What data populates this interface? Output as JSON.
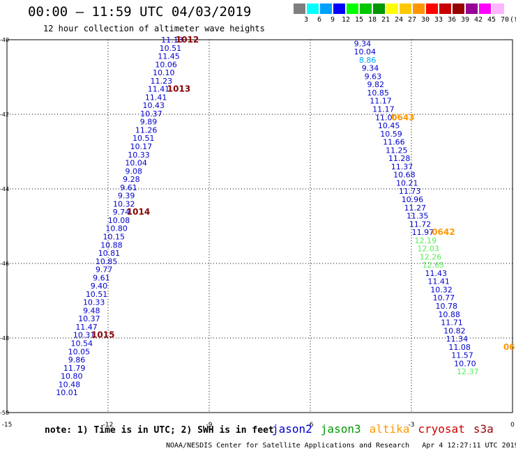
{
  "header": {
    "title": "00:00 – 11:59 UTC 04/03/2019",
    "subtitle": "12 hour collection of altimeter wave heights"
  },
  "legend": {
    "unit": "(ft)",
    "levels": [
      {
        "label": "3",
        "color": "#7f7f7f"
      },
      {
        "label": "6",
        "color": "#00ffff"
      },
      {
        "label": "9",
        "color": "#00a0ff"
      },
      {
        "label": "12",
        "color": "#0000ff"
      },
      {
        "label": "15",
        "color": "#00ff00"
      },
      {
        "label": "18",
        "color": "#00c800"
      },
      {
        "label": "21",
        "color": "#009600"
      },
      {
        "label": "24",
        "color": "#ffff00"
      },
      {
        "label": "27",
        "color": "#ffc800"
      },
      {
        "label": "30",
        "color": "#ff9600"
      },
      {
        "label": "33",
        "color": "#ff0000"
      },
      {
        "label": "36",
        "color": "#c80000"
      },
      {
        "label": "39",
        "color": "#960000"
      },
      {
        "label": "42",
        "color": "#960096"
      },
      {
        "label": "45",
        "color": "#ff00ff"
      },
      {
        "label": "70",
        "color": "#ffb4ff"
      }
    ]
  },
  "footer": {
    "note": "note:  1) Time is in UTC; 2) SWH is in feet",
    "credit": "NOAA/NESDIS Center for Satellite Applications and Research",
    "timestamp": "Apr  4 12:27:11 UTC 2019"
  },
  "satellites": [
    {
      "name": "jason2",
      "color": "#0000cc"
    },
    {
      "name": "jason3",
      "color": "#009900"
    },
    {
      "name": "altika",
      "color": "#ff9900"
    },
    {
      "name": "cryosat",
      "color": "#cc0000"
    },
    {
      "name": "s3a",
      "color": "#990000"
    }
  ],
  "chart_data": {
    "type": "scatter",
    "title": "",
    "xlabel": "",
    "ylabel": "",
    "xlim": [
      -15,
      0
    ],
    "ylim": [
      -50,
      -40
    ],
    "x_ticks": [
      "-15",
      "-12",
      "-9",
      "-6",
      "-3",
      "0"
    ],
    "y_ticks": [
      "-40",
      "-42",
      "-44",
      "-46",
      "-48",
      "-50"
    ],
    "grid": true,
    "series": [
      {
        "color": "#0000cc",
        "points": [
          {
            "x": -10.1,
            "y": -40.0,
            "label": "11.13"
          },
          {
            "x": -10.15,
            "y": -40.22,
            "label": "10.51"
          },
          {
            "x": -10.2,
            "y": -40.44,
            "label": "11.45"
          },
          {
            "x": -10.28,
            "y": -40.66,
            "label": "10.06"
          },
          {
            "x": -10.35,
            "y": -40.88,
            "label": "10.10"
          },
          {
            "x": -10.42,
            "y": -41.1,
            "label": "11.23"
          },
          {
            "x": -10.5,
            "y": -41.32,
            "label": "11.41"
          },
          {
            "x": -10.58,
            "y": -41.54,
            "label": "11.41"
          },
          {
            "x": -10.65,
            "y": -41.76,
            "label": "10.43"
          },
          {
            "x": -10.72,
            "y": -41.98,
            "label": "10.37"
          },
          {
            "x": -10.8,
            "y": -42.2,
            "label": "9.89"
          },
          {
            "x": -10.87,
            "y": -42.42,
            "label": "11.26"
          },
          {
            "x": -10.95,
            "y": -42.64,
            "label": "10.51"
          },
          {
            "x": -11.02,
            "y": -42.86,
            "label": "10.17"
          },
          {
            "x": -11.09,
            "y": -43.08,
            "label": "10.33"
          },
          {
            "x": -11.17,
            "y": -43.3,
            "label": "10.04"
          },
          {
            "x": -11.24,
            "y": -43.52,
            "label": "9.08"
          },
          {
            "x": -11.31,
            "y": -43.74,
            "label": "9.28"
          },
          {
            "x": -11.39,
            "y": -43.96,
            "label": "9.61"
          },
          {
            "x": -11.46,
            "y": -44.18,
            "label": "9.39"
          },
          {
            "x": -11.53,
            "y": -44.4,
            "label": "10.32"
          },
          {
            "x": -11.61,
            "y": -44.62,
            "label": "9.74"
          },
          {
            "x": -11.68,
            "y": -44.84,
            "label": "10.08"
          },
          {
            "x": -11.75,
            "y": -45.06,
            "label": "10.80"
          },
          {
            "x": -11.83,
            "y": -45.28,
            "label": "10.15"
          },
          {
            "x": -11.9,
            "y": -45.5,
            "label": "10.88"
          },
          {
            "x": -11.97,
            "y": -45.72,
            "label": "10.81"
          },
          {
            "x": -12.05,
            "y": -45.94,
            "label": "10.85"
          },
          {
            "x": -12.12,
            "y": -46.16,
            "label": "9.77"
          },
          {
            "x": -12.2,
            "y": -46.38,
            "label": "9.61"
          },
          {
            "x": -12.27,
            "y": -46.6,
            "label": "9.40"
          },
          {
            "x": -12.34,
            "y": -46.82,
            "label": "10.51"
          },
          {
            "x": -12.42,
            "y": -47.04,
            "label": "10.33"
          },
          {
            "x": -12.49,
            "y": -47.26,
            "label": "9.48"
          },
          {
            "x": -12.56,
            "y": -47.48,
            "label": "10.37"
          },
          {
            "x": -12.64,
            "y": -47.7,
            "label": "11.47"
          },
          {
            "x": -12.71,
            "y": -47.92,
            "label": "10.31"
          },
          {
            "x": -12.78,
            "y": -48.14,
            "label": "10.54"
          },
          {
            "x": -12.86,
            "y": -48.36,
            "label": "10.05"
          },
          {
            "x": -12.93,
            "y": -48.58,
            "label": "9.86"
          },
          {
            "x": -13.0,
            "y": -48.8,
            "label": "11.79"
          },
          {
            "x": -13.08,
            "y": -49.02,
            "label": "10.80"
          },
          {
            "x": -13.15,
            "y": -49.24,
            "label": "10.48"
          },
          {
            "x": -13.22,
            "y": -49.46,
            "label": "10.01"
          }
        ]
      },
      {
        "color": "#0000cc",
        "points": [
          {
            "x": -4.45,
            "y": -40.1,
            "label": "9.34"
          },
          {
            "x": -4.38,
            "y": -40.32,
            "label": "10.04"
          },
          {
            "x": -4.3,
            "y": -40.54,
            "label": "8.86",
            "color": "#00a0ff"
          },
          {
            "x": -4.22,
            "y": -40.76,
            "label": "9.34"
          },
          {
            "x": -4.14,
            "y": -40.98,
            "label": "9.63"
          },
          {
            "x": -4.06,
            "y": -41.2,
            "label": "9.82"
          },
          {
            "x": -3.99,
            "y": -41.42,
            "label": "10.85"
          },
          {
            "x": -3.91,
            "y": -41.64,
            "label": "11.17"
          },
          {
            "x": -3.83,
            "y": -41.86,
            "label": "11.17"
          },
          {
            "x": -3.75,
            "y": -42.08,
            "label": "11.00"
          },
          {
            "x": -3.67,
            "y": -42.3,
            "label": "10.45"
          },
          {
            "x": -3.6,
            "y": -42.52,
            "label": "10.59"
          },
          {
            "x": -3.52,
            "y": -42.74,
            "label": "11.66"
          },
          {
            "x": -3.44,
            "y": -42.96,
            "label": "11.25"
          },
          {
            "x": -3.36,
            "y": -43.18,
            "label": "11.28"
          },
          {
            "x": -3.28,
            "y": -43.4,
            "label": "11.37"
          },
          {
            "x": -3.21,
            "y": -43.62,
            "label": "10.68"
          },
          {
            "x": -3.13,
            "y": -43.84,
            "label": "10.21"
          },
          {
            "x": -3.05,
            "y": -44.06,
            "label": "11.73"
          },
          {
            "x": -2.97,
            "y": -44.28,
            "label": "10.96"
          },
          {
            "x": -2.89,
            "y": -44.5,
            "label": "11.27"
          },
          {
            "x": -2.82,
            "y": -44.72,
            "label": "11.35"
          },
          {
            "x": -2.74,
            "y": -44.94,
            "label": "11.72"
          },
          {
            "x": -2.66,
            "y": -45.16,
            "label": "11.97"
          },
          {
            "x": -2.58,
            "y": -45.38,
            "label": "12.19",
            "color": "#55ee55"
          },
          {
            "x": -2.5,
            "y": -45.6,
            "label": "12.03",
            "color": "#55ee55"
          },
          {
            "x": -2.43,
            "y": -45.82,
            "label": "12.26",
            "color": "#55ee55"
          },
          {
            "x": -2.35,
            "y": -46.04,
            "label": "12.65",
            "color": "#55ee55"
          },
          {
            "x": -2.27,
            "y": -46.26,
            "label": "11.43"
          },
          {
            "x": -2.19,
            "y": -46.48,
            "label": "11.41"
          },
          {
            "x": -2.11,
            "y": -46.7,
            "label": "10.32"
          },
          {
            "x": -2.04,
            "y": -46.92,
            "label": "10.77"
          },
          {
            "x": -1.96,
            "y": -47.14,
            "label": "10.78"
          },
          {
            "x": -1.88,
            "y": -47.36,
            "label": "10.88"
          },
          {
            "x": -1.8,
            "y": -47.58,
            "label": "11.71"
          },
          {
            "x": -1.72,
            "y": -47.8,
            "label": "10.82"
          },
          {
            "x": -1.65,
            "y": -48.02,
            "label": "11.34"
          },
          {
            "x": -1.57,
            "y": -48.24,
            "label": "11.08"
          },
          {
            "x": -1.49,
            "y": -48.46,
            "label": "11.57"
          },
          {
            "x": -1.41,
            "y": -48.68,
            "label": "10.70"
          },
          {
            "x": -1.33,
            "y": -48.9,
            "label": "12.37",
            "color": "#55ee55"
          }
        ]
      }
    ],
    "time_annotations": [
      {
        "x": -9.65,
        "y": -40.0,
        "label": "1012",
        "color": "#880000"
      },
      {
        "x": -9.9,
        "y": -41.32,
        "label": "1013",
        "color": "#880000"
      },
      {
        "x": -11.1,
        "y": -44.62,
        "label": "1014",
        "color": "#880000"
      },
      {
        "x": -12.15,
        "y": -47.92,
        "label": "1015",
        "color": "#880000"
      },
      {
        "x": -3.25,
        "y": -42.08,
        "label": "0643",
        "color": "#ff9900"
      },
      {
        "x": -2.05,
        "y": -45.16,
        "label": "0642",
        "color": "#ff9900"
      },
      {
        "x": -0.1,
        "y": -48.24,
        "label": "06",
        "color": "#ff9900"
      }
    ]
  }
}
